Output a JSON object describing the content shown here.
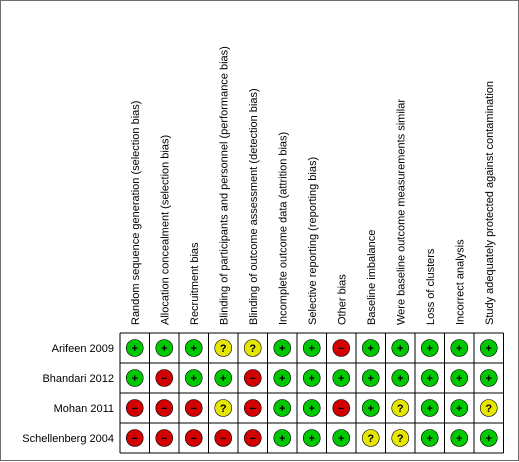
{
  "columns": [
    "Random sequence generation (selection bias)",
    "Allocation concealment (selection bias)",
    "Recruitment bias",
    "Blinding of participants and personnel (performance bias)",
    "Blinding of outcome assessment (detection bias)",
    "Incomplete outcome data (attrition bias)",
    "Selective reporting (reporting bias)",
    "Other bias",
    "Baseline imbalance",
    "Were baseline outcome measurements similar",
    "Loss of clusters",
    "Incorrect analysis",
    "Study adequately protected against contamination"
  ],
  "studies": [
    {
      "name": "Arifeen 2009",
      "ratings": [
        "low",
        "low",
        "low",
        "unclear",
        "unclear",
        "low",
        "low",
        "high",
        "low",
        "low",
        "low",
        "low",
        "low"
      ]
    },
    {
      "name": "Bhandari 2012",
      "ratings": [
        "low",
        "high",
        "low",
        "low",
        "high",
        "low",
        "low",
        "low",
        "low",
        "low",
        "low",
        "low",
        "low"
      ]
    },
    {
      "name": "Mohan 2011",
      "ratings": [
        "high",
        "high",
        "high",
        "unclear",
        "high",
        "low",
        "low",
        "high",
        "low",
        "unclear",
        "low",
        "low",
        "unclear"
      ]
    },
    {
      "name": "Schellenberg 2004",
      "ratings": [
        "high",
        "high",
        "high",
        "high",
        "high",
        "low",
        "low",
        "low",
        "unclear",
        "unclear",
        "low",
        "low",
        "low"
      ]
    }
  ],
  "legend": {
    "low": {
      "symbol": "+",
      "color": "#00c800"
    },
    "high": {
      "symbol": "−",
      "color": "#d20000"
    },
    "unclear": {
      "symbol": "?",
      "color": "#e6e600"
    }
  }
}
